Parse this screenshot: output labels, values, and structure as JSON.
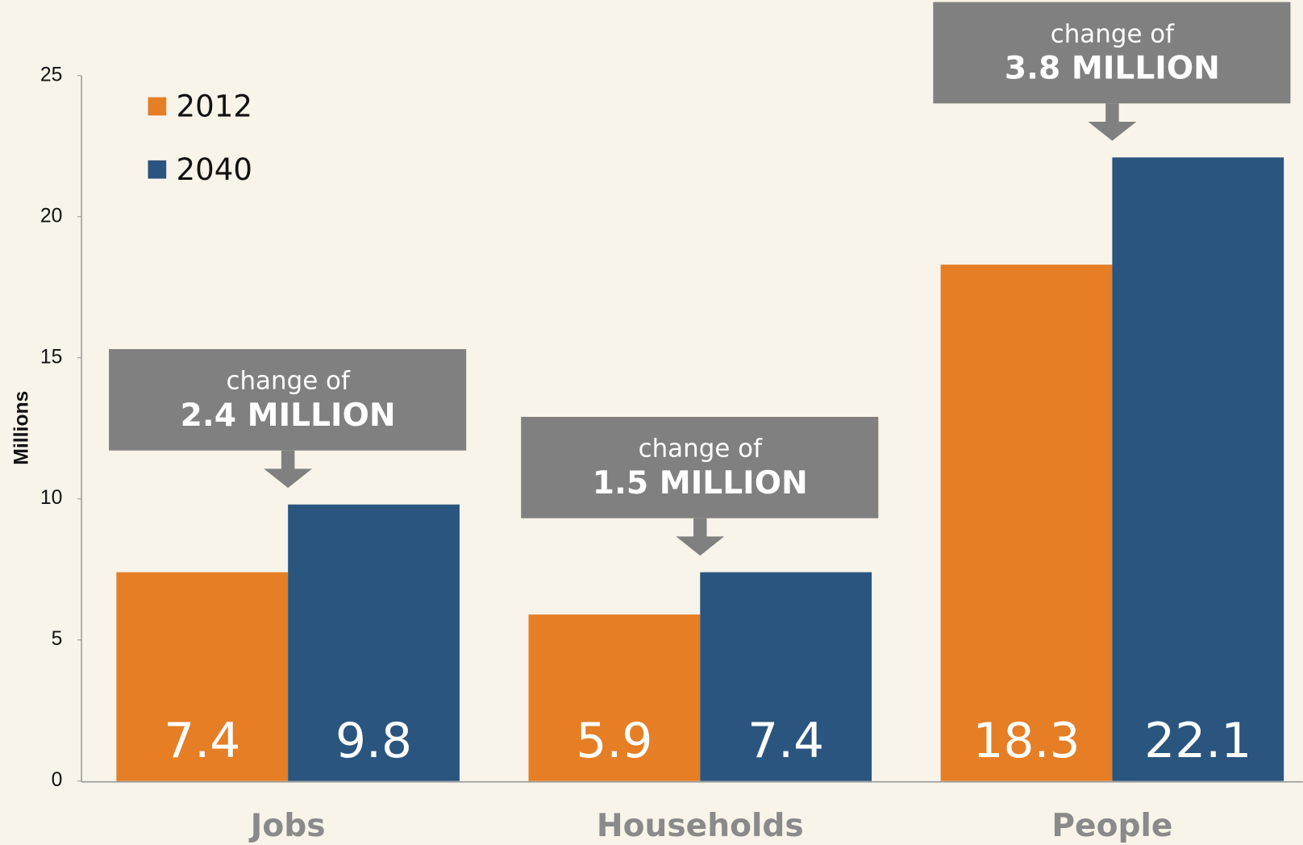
{
  "chart_data": {
    "type": "bar",
    "y_label": "Millions",
    "categories": [
      "Jobs",
      "Households",
      "People"
    ],
    "series": [
      {
        "name": "2012",
        "color": "#e57e25",
        "values": [
          7.4,
          5.9,
          18.3
        ]
      },
      {
        "name": "2040",
        "color": "#2a557f",
        "values": [
          9.8,
          7.4,
          22.1
        ]
      }
    ],
    "annotations": [
      {
        "line1": "change of",
        "line2": "2.4 MILLION"
      },
      {
        "line1": "change of",
        "line2": "1.5 MILLION"
      },
      {
        "line1": "change of",
        "line2": "3.8 MILLION"
      }
    ],
    "annotation_color": "#808080",
    "ylim": [
      0,
      25
    ],
    "yticks": [
      0,
      5,
      10,
      15,
      20,
      25
    ],
    "grid": false,
    "legend": "upper left"
  }
}
